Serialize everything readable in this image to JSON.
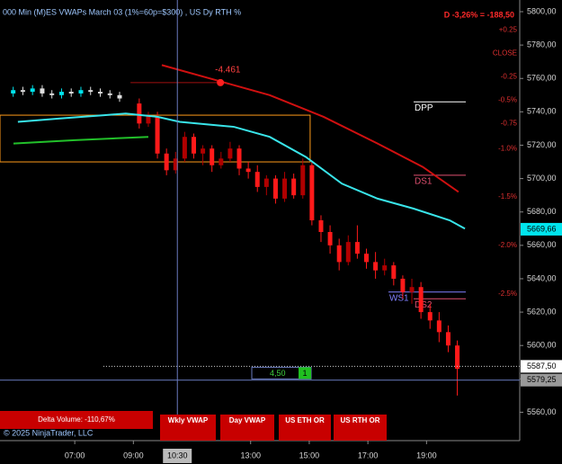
{
  "chart_data": {
    "type": "candlestick",
    "title": "000 Min (M)ES VWAPs March 03 (1%=60p=$300) , US Dy RTH %",
    "change_label": "D -3,26% = -188,50",
    "xlim": [
      4.45,
      22.18
    ],
    "ylim": [
      5543,
      5807
    ],
    "xticks": [
      {
        "value": 7,
        "label": "07:00"
      },
      {
        "value": 9,
        "label": "09:00"
      },
      {
        "value": 13,
        "label": "13:00"
      },
      {
        "value": 15,
        "label": "15:00"
      },
      {
        "value": 17,
        "label": "17:00"
      },
      {
        "value": 19,
        "label": "19:00"
      }
    ],
    "yticks": [
      {
        "value": 5800,
        "label": "5800,00"
      },
      {
        "value": 5780,
        "label": "5780,00"
      },
      {
        "value": 5760,
        "label": "5760,00"
      },
      {
        "value": 5740,
        "label": "5740,00"
      },
      {
        "value": 5720,
        "label": "5720,00"
      },
      {
        "value": 5700,
        "label": "5700,00"
      },
      {
        "value": 5680,
        "label": "5680,00"
      },
      {
        "value": 5660,
        "label": "5660,00"
      },
      {
        "value": 5640,
        "label": "5640,00"
      },
      {
        "value": 5620,
        "label": "5620,00"
      },
      {
        "value": 5600,
        "label": "5600,00"
      },
      {
        "value": 5580,
        "label": "5580,00"
      },
      {
        "value": 5560,
        "label": "5560,00"
      }
    ],
    "pct_levels": [
      {
        "value": 5789,
        "label": "+0.25"
      },
      {
        "value": 5775,
        "label": "CLOSE"
      },
      {
        "value": 5761,
        "label": "-0.25"
      },
      {
        "value": 5747,
        "label": "-0.5%"
      },
      {
        "value": 5733,
        "label": "-0.75"
      },
      {
        "value": 5718,
        "label": "-1.0%"
      },
      {
        "value": 5689,
        "label": "-1.5%"
      },
      {
        "value": 5660,
        "label": "-2.0%"
      },
      {
        "value": 5631,
        "label": "-2.5%"
      }
    ],
    "candles": [
      {
        "up_color": "#00e5ee",
        "down_color": "#e0e0e0",
        "x": [
          4.9,
          5.23,
          5.56,
          5.89,
          6.22,
          6.55,
          6.88,
          7.21,
          7.54,
          7.87,
          8.2,
          8.53
        ],
        "open": [
          5751,
          5753,
          5752,
          5754,
          5751,
          5750,
          5752,
          5751,
          5753,
          5752,
          5751,
          5750
        ],
        "high": [
          5755,
          5755,
          5756,
          5756,
          5753,
          5754,
          5754,
          5755,
          5755,
          5754,
          5753,
          5752
        ],
        "low": [
          5749,
          5750,
          5750,
          5749,
          5748,
          5748,
          5749,
          5749,
          5750,
          5749,
          5748,
          5746
        ],
        "close": [
          5753,
          5752,
          5754,
          5751,
          5750,
          5752,
          5751,
          5753,
          5752,
          5751,
          5750,
          5748
        ]
      },
      {
        "up_color": "#b00000",
        "down_color": "#ff1a1a",
        "x": [
          9.2,
          9.51,
          9.82,
          10.13,
          10.44,
          10.75,
          11.06,
          11.37,
          11.68,
          11.99,
          12.3,
          12.61,
          12.92,
          13.23,
          13.54,
          13.85,
          14.16,
          14.47,
          14.78,
          15.09,
          15.4,
          15.71,
          16.02,
          16.33,
          16.64,
          16.95,
          17.26,
          17.57,
          17.88,
          18.19,
          18.5,
          18.81,
          19.12,
          19.43,
          19.74,
          20.05
        ],
        "open": [
          5745,
          5733,
          5737,
          5715,
          5705,
          5712,
          5725,
          5715,
          5718,
          5708,
          5712,
          5718,
          5706,
          5704,
          5695,
          5700,
          5688,
          5700,
          5690,
          5708,
          5675,
          5668,
          5660,
          5650,
          5662,
          5655,
          5650,
          5645,
          5648,
          5640,
          5632,
          5635,
          5620,
          5615,
          5608,
          5600
        ],
        "high": [
          5748,
          5740,
          5740,
          5718,
          5716,
          5728,
          5727,
          5720,
          5720,
          5716,
          5722,
          5720,
          5710,
          5708,
          5702,
          5702,
          5704,
          5703,
          5712,
          5710,
          5678,
          5672,
          5664,
          5666,
          5672,
          5658,
          5656,
          5652,
          5650,
          5642,
          5640,
          5638,
          5625,
          5620,
          5612,
          5603
        ],
        "low": [
          5730,
          5731,
          5712,
          5702,
          5703,
          5710,
          5712,
          5708,
          5704,
          5706,
          5710,
          5702,
          5700,
          5692,
          5690,
          5685,
          5686,
          5688,
          5688,
          5672,
          5662,
          5655,
          5645,
          5648,
          5652,
          5646,
          5640,
          5642,
          5636,
          5628,
          5625,
          5616,
          5610,
          5602,
          5596,
          5570
        ],
        "close": [
          5733,
          5738,
          5715,
          5705,
          5712,
          5725,
          5715,
          5718,
          5708,
          5712,
          5718,
          5706,
          5704,
          5695,
          5700,
          5688,
          5700,
          5690,
          5708,
          5675,
          5668,
          5660,
          5650,
          5662,
          5655,
          5650,
          5645,
          5648,
          5640,
          5632,
          5635,
          5620,
          5615,
          5608,
          5600,
          5586
        ]
      }
    ],
    "series": [
      {
        "color": "#39e5ea",
        "x": [
          5.06,
          6.5,
          8.0,
          8.74,
          9.82,
          10.58,
          12.43,
          13.65,
          14.88,
          16.11,
          17.33,
          18.56,
          19.79,
          20.31
        ],
        "values": [
          5734,
          5736,
          5738,
          5739,
          5737,
          5734,
          5731,
          5725,
          5713,
          5697,
          5688,
          5682,
          5675,
          5670
        ]
      },
      {
        "color": "#d01010",
        "x": [
          9.97,
          11.81,
          13.65,
          15.49,
          17.33,
          18.87,
          20.09
        ],
        "values": [
          5768,
          5759,
          5750,
          5737,
          5721,
          5707,
          5692
        ]
      },
      {
        "color": "#22c02a",
        "x": [
          4.91,
          7.0,
          9.51
        ],
        "values": [
          5721,
          5723,
          5725
        ]
      }
    ],
    "levels": [
      {
        "label": "DPP",
        "value": 5746,
        "x": [
          18.56,
          20.34
        ],
        "color": "#ffffff"
      },
      {
        "label": "DS1",
        "value": 5702,
        "x": [
          18.56,
          20.34
        ],
        "color": "#e05070"
      },
      {
        "label": "WS1",
        "value": 5632,
        "x": [
          17.7,
          20.34
        ],
        "color": "#8080ff"
      },
      {
        "label": "DS2",
        "value": 5628,
        "x": [
          18.56,
          20.34
        ],
        "color": "#e05070"
      }
    ],
    "annotation": {
      "label": "-4.461",
      "x": 11.97,
      "value": 5757.5
    },
    "range_box": {
      "x": [
        4.45,
        15.03
      ],
      "values": [
        5738,
        5710
      ]
    },
    "price_markers": [
      {
        "value": 5669.66,
        "label": "5669,66"
      },
      {
        "value": 5587.5,
        "label": "5587,50"
      },
      {
        "value": 5579.25,
        "label": "5579,25"
      }
    ],
    "crosshair": {
      "value": 10.5,
      "label": "10:30"
    },
    "order": {
      "quantity": "4,50",
      "count": "1"
    },
    "buttons": [
      "Delta Volume: -110,67%",
      "Wkly VWAP",
      "Day VWAP",
      "US ETH OR",
      "US RTH OR"
    ],
    "copyright": "© 2025 NinjaTrader, LLC"
  }
}
